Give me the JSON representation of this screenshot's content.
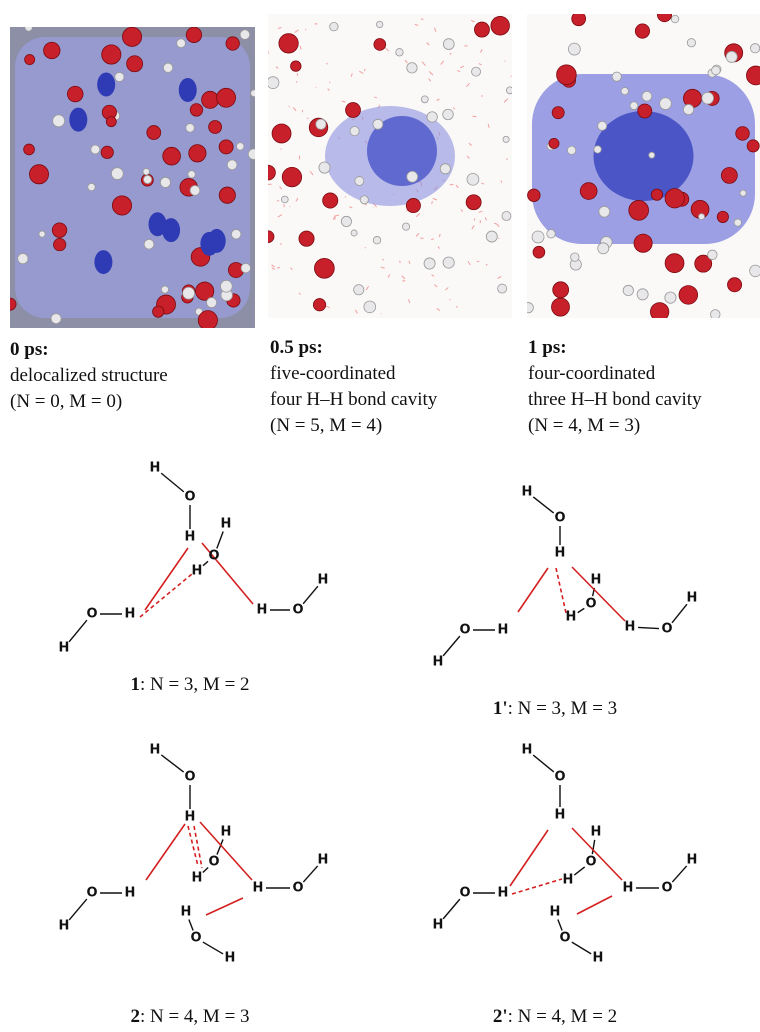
{
  "panels": [
    {
      "heading": "0 ps:",
      "lines": [
        "delocalized structure",
        "(N = 0, M = 0)"
      ]
    },
    {
      "heading": "0.5 ps:",
      "lines": [
        "five-coordinated",
        "four H–H bond cavity",
        "(N = 5, M = 4)"
      ]
    },
    {
      "heading": "1 ps:",
      "lines": [
        "four-coordinated",
        "three H–H bond cavity",
        "(N = 4, M = 3)"
      ]
    }
  ],
  "diagrams": [
    {
      "atoms": [
        "H",
        "O",
        "H",
        "H",
        "O",
        "H",
        "H",
        "O",
        "H",
        "H",
        "O",
        "H"
      ],
      "caption": {
        "label": "1",
        "rest": ": N = 3, M = 2"
      }
    },
    {
      "atoms": [
        "H",
        "O",
        "H",
        "H",
        "O",
        "H",
        "H",
        "O",
        "H",
        "H",
        "O",
        "H"
      ],
      "caption": {
        "label": "1'",
        "rest": ": N = 3, M = 3"
      }
    },
    {
      "atoms": [
        "H",
        "O",
        "H",
        "H",
        "O",
        "H",
        "H",
        "O",
        "H",
        "H",
        "O",
        "H",
        "H",
        "O",
        "H"
      ],
      "caption": {
        "label": "2",
        "rest": ": N = 4, M = 3"
      }
    },
    {
      "atoms": [
        "H",
        "O",
        "H",
        "H",
        "O",
        "H",
        "H",
        "O",
        "H",
        "H",
        "O",
        "H",
        "H",
        "O",
        "H"
      ],
      "caption": {
        "label": "2'",
        "rest": ": N = 4, M = 2"
      }
    }
  ]
}
